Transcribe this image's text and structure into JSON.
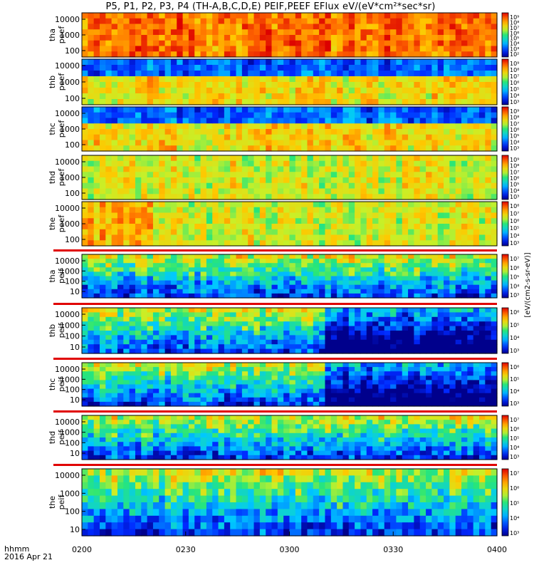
{
  "chart_data": {
    "type": "heatmap",
    "title": "P5, P1, P2, P3, P4 (TH-A,B,C,D,E) PEIF,PEEF EFlux eV/(eV*cm²*sec*sr)",
    "time_axis": {
      "ticks": [
        "0200",
        "0230",
        "0300",
        "0330",
        "0400"
      ],
      "label_row1": "hhmm",
      "label_row2": "2016 Apr 21",
      "range": [
        "02:00",
        "04:00"
      ]
    },
    "colorbar_label": "[eV/(cm2-s-sr-eV)]",
    "panels": [
      {
        "probe": "tha",
        "product": "peef",
        "ylabel": [
          "tha",
          "peef"
        ],
        "yticks": [
          "10000",
          "1000",
          "100"
        ],
        "cbar_ticks": [
          "10⁹",
          "10⁸",
          "10⁷",
          "10⁶",
          "10⁵",
          "10⁴",
          "10³",
          "10²"
        ]
      },
      {
        "probe": "thb",
        "product": "peef",
        "ylabel": [
          "thb",
          "peef"
        ],
        "yticks": [
          "10000",
          "1000",
          "100"
        ],
        "cbar_ticks": [
          "10⁹",
          "10⁸",
          "10⁷",
          "10⁶",
          "10⁵",
          "10⁴",
          "10³"
        ]
      },
      {
        "probe": "thc",
        "product": "peef",
        "ylabel": [
          "thc",
          "peef"
        ],
        "yticks": [
          "10000",
          "1000",
          "100"
        ],
        "cbar_ticks": [
          "10⁹",
          "10⁸",
          "10⁷",
          "10⁶",
          "10⁵",
          "10⁴",
          "10³"
        ]
      },
      {
        "probe": "thd",
        "product": "peef",
        "ylabel": [
          "thd",
          "peef"
        ],
        "yticks": [
          "10000",
          "1000",
          "100"
        ],
        "cbar_ticks": [
          "10⁹",
          "10⁸",
          "10⁷",
          "10⁶",
          "10⁵",
          "10⁴",
          "10³"
        ]
      },
      {
        "probe": "the",
        "product": "peef",
        "ylabel": [
          "the",
          "peef"
        ],
        "yticks": [
          "10000",
          "1000",
          "100"
        ],
        "cbar_ticks": [
          "10⁸",
          "10⁷",
          "10⁶",
          "10⁵",
          "10⁴",
          "10³"
        ]
      },
      {
        "probe": "tha",
        "product": "peif",
        "ylabel": [
          "tha",
          "peif"
        ],
        "yticks": [
          "10000",
          "1000",
          "100",
          "10"
        ],
        "cbar_ticks": [
          "10⁷",
          "10⁶",
          "10⁵",
          "10⁴",
          "10³"
        ]
      },
      {
        "probe": "thb",
        "product": "peif",
        "ylabel": [
          "thb",
          "peif"
        ],
        "yticks": [
          "10000",
          "1000",
          "100",
          "10"
        ],
        "cbar_ticks": [
          "10⁶",
          "10⁵",
          "10⁴",
          "10³"
        ]
      },
      {
        "probe": "thc",
        "product": "peif",
        "ylabel": [
          "thc",
          "peif"
        ],
        "yticks": [
          "10000",
          "1000",
          "100",
          "10"
        ],
        "cbar_ticks": [
          "10⁶",
          "10⁵",
          "10⁴",
          "10³"
        ]
      },
      {
        "probe": "thd",
        "product": "peif",
        "ylabel": [
          "thd",
          "peif"
        ],
        "yticks": [
          "10000",
          "1000",
          "100",
          "10"
        ],
        "cbar_ticks": [
          "10⁷",
          "10⁶",
          "10⁵",
          "10⁴",
          "10³"
        ]
      },
      {
        "probe": "the",
        "product": "peif",
        "ylabel": [
          "the",
          "peif"
        ],
        "yticks": [
          "10000",
          "1000",
          "100",
          "10"
        ],
        "cbar_ticks": [
          "10⁷",
          "10⁶",
          "10⁵",
          "10⁴",
          "10³"
        ]
      }
    ]
  }
}
